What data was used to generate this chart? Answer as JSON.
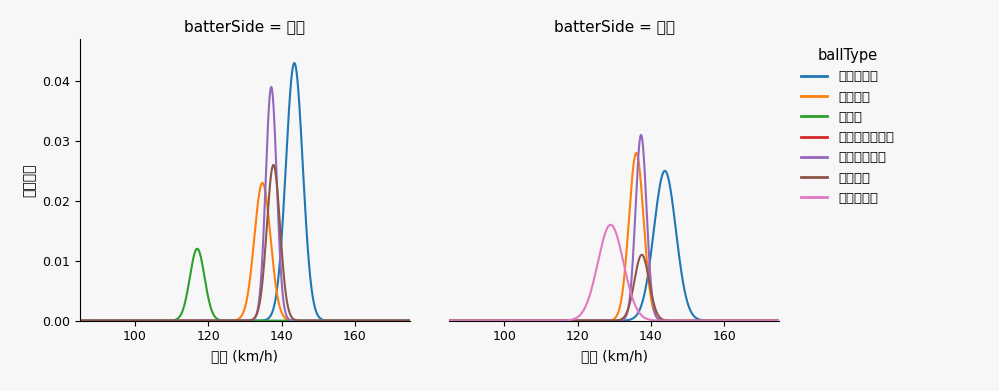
{
  "title_left": "batterSide = 左打",
  "title_right": "batterSide = 右打",
  "legend_title": "ballType",
  "ylabel": "確率密度",
  "xlabel": "球速 (km/h)",
  "xlim": [
    85,
    175
  ],
  "ylim": [
    0,
    0.047
  ],
  "yticks": [
    0.0,
    0.01,
    0.02,
    0.03,
    0.04
  ],
  "xticks": [
    100,
    120,
    140,
    160
  ],
  "ball_types": [
    "ストレート",
    "フォーク",
    "カーブ",
    "チェンジアップ",
    "カットボール",
    "シュート",
    "スライダー"
  ],
  "colors": [
    "#1f77b4",
    "#ff7f0e",
    "#2ca02c",
    "#d62728",
    "#9467bd",
    "#8c564b",
    "#e377c2"
  ],
  "left_params": {
    "ストレート": [
      143.5,
      2.3,
      0.043
    ],
    "フォーク": [
      134.8,
      2.2,
      0.023
    ],
    "カーブ": [
      117.0,
      2.0,
      0.012
    ],
    "カットボール": [
      137.2,
      1.5,
      0.039
    ],
    "シュート": [
      137.8,
      1.8,
      0.026
    ]
  },
  "right_params": {
    "ストレート": [
      143.8,
      3.0,
      0.025
    ],
    "フォーク": [
      136.0,
      2.0,
      0.028
    ],
    "カットボール": [
      137.3,
      1.5,
      0.031
    ],
    "シュート": [
      137.5,
      2.0,
      0.011
    ],
    "スライダー": [
      129.0,
      3.5,
      0.016
    ]
  },
  "background_color": "#f7f7f7",
  "axes_bg": "#f7f7f7"
}
